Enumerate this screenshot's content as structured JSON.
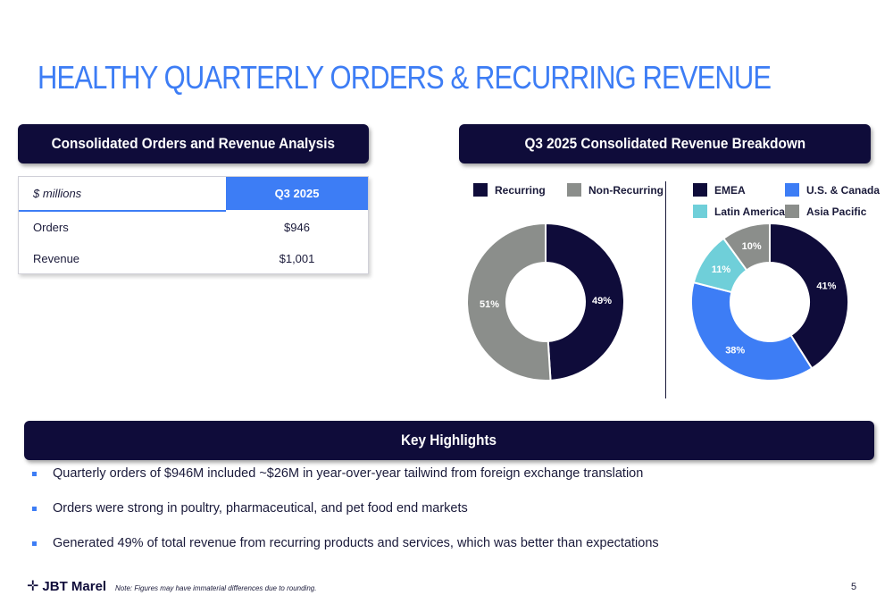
{
  "title": "HEALTHY QUARTERLY ORDERS & RECURRING REVENUE",
  "left_banner": "Consolidated Orders and Revenue Analysis",
  "right_banner": "Q3 2025 Consolidated Revenue Breakdown",
  "highlights_banner": "Key Highlights",
  "table": {
    "header_label": "$ millions",
    "header_period": "Q3 2025",
    "rows": [
      {
        "label": "Orders",
        "value": "$946"
      },
      {
        "label": "Revenue",
        "value": "$1,001"
      }
    ]
  },
  "chart_data": [
    {
      "type": "pie",
      "variant": "donut",
      "categories": [
        "Recurring",
        "Non-Recurring"
      ],
      "values": [
        49,
        51
      ],
      "labels": [
        "49%",
        "51%"
      ],
      "colors": [
        "#0f0c3a",
        "#8b8e8b"
      ],
      "legend": [
        "Recurring",
        "Non-Recurring"
      ]
    },
    {
      "type": "pie",
      "variant": "donut",
      "categories": [
        "EMEA",
        "U.S. & Canada",
        "Latin America",
        "Asia Pacific"
      ],
      "values": [
        41,
        38,
        11,
        10
      ],
      "labels": [
        "41%",
        "38%",
        "11%",
        "10%"
      ],
      "colors": [
        "#0f0c3a",
        "#3d7df5",
        "#6fcfd9",
        "#8b8e8b"
      ],
      "legend": [
        "EMEA",
        "U.S. & Canada",
        "Latin America",
        "Asia Pacific"
      ]
    }
  ],
  "highlights": [
    "Quarterly orders of $946M included ~$26M in year-over-year tailwind from foreign exchange translation",
    "Orders were strong in poultry, pharmaceutical, and pet food end markets",
    "Generated 49% of total revenue from recurring products and services, which was better than expectations"
  ],
  "footer": {
    "logo_text": "JBT Marel",
    "logo_icon": "cross-arrows-icon",
    "note": "Note: Figures may have immaterial differences due to rounding.",
    "page_number": "5"
  }
}
